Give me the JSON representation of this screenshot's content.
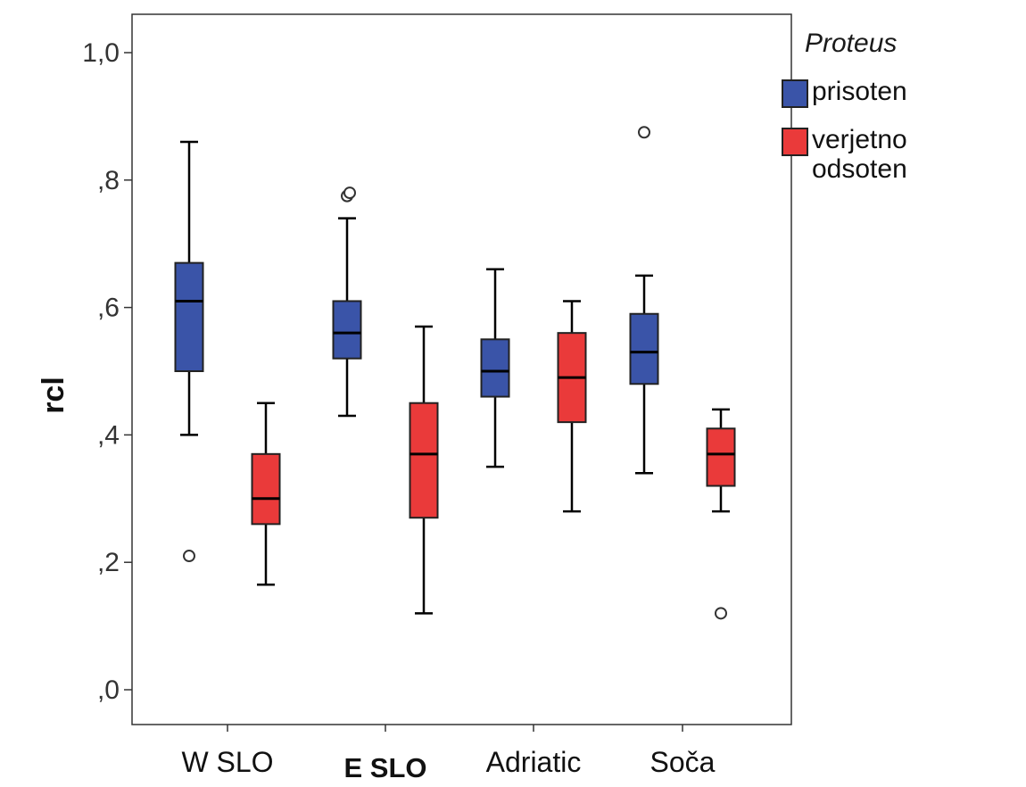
{
  "chart_data": {
    "type": "boxplot",
    "ylabel": "rcl",
    "ylim": [
      0.0,
      1.05
    ],
    "y_ticks": [
      {
        "value": 0.0,
        "label": ",0"
      },
      {
        "value": 0.2,
        "label": ",2"
      },
      {
        "value": 0.4,
        "label": ",4"
      },
      {
        "value": 0.6,
        "label": ",6"
      },
      {
        "value": 0.8,
        "label": ",8"
      },
      {
        "value": 1.0,
        "label": "1,0"
      }
    ],
    "categories": [
      "W SLO",
      "E SLO",
      "Adriatic",
      "Soča"
    ],
    "legend": {
      "title": "Proteus",
      "placement": "right",
      "entries": [
        {
          "label_lines": [
            "prisoten"
          ],
          "color": "#3a54a8"
        },
        {
          "label_lines": [
            "verjetno",
            "odsoten"
          ],
          "color": "#ea3a3a"
        }
      ]
    },
    "series": [
      {
        "name": "prisoten",
        "color": "#3a54a8",
        "boxes": [
          {
            "category": "W SLO",
            "min": 0.4,
            "q1": 0.5,
            "median": 0.61,
            "q3": 0.67,
            "max": 0.86,
            "outliers": [
              0.21
            ]
          },
          {
            "category": "E SLO",
            "min": 0.43,
            "q1": 0.52,
            "median": 0.56,
            "q3": 0.61,
            "max": 0.74,
            "outliers": [
              0.775,
              0.78
            ]
          },
          {
            "category": "Adriatic",
            "min": 0.35,
            "q1": 0.46,
            "median": 0.5,
            "q3": 0.55,
            "max": 0.66,
            "outliers": []
          },
          {
            "category": "Soča",
            "min": 0.34,
            "q1": 0.48,
            "median": 0.53,
            "q3": 0.59,
            "max": 0.65,
            "outliers": [
              0.875
            ]
          }
        ]
      },
      {
        "name": "verjetno odsoten",
        "color": "#ea3a3a",
        "boxes": [
          {
            "category": "W SLO",
            "min": 0.165,
            "q1": 0.26,
            "median": 0.3,
            "q3": 0.37,
            "max": 0.45,
            "outliers": []
          },
          {
            "category": "E SLO",
            "min": 0.12,
            "q1": 0.27,
            "median": 0.37,
            "q3": 0.45,
            "max": 0.57,
            "outliers": []
          },
          {
            "category": "Adriatic",
            "min": 0.28,
            "q1": 0.42,
            "median": 0.49,
            "q3": 0.56,
            "max": 0.61,
            "outliers": []
          },
          {
            "category": "Soča",
            "min": 0.28,
            "q1": 0.32,
            "median": 0.37,
            "q3": 0.41,
            "max": 0.44,
            "outliers": [
              0.12
            ]
          }
        ]
      }
    ]
  }
}
